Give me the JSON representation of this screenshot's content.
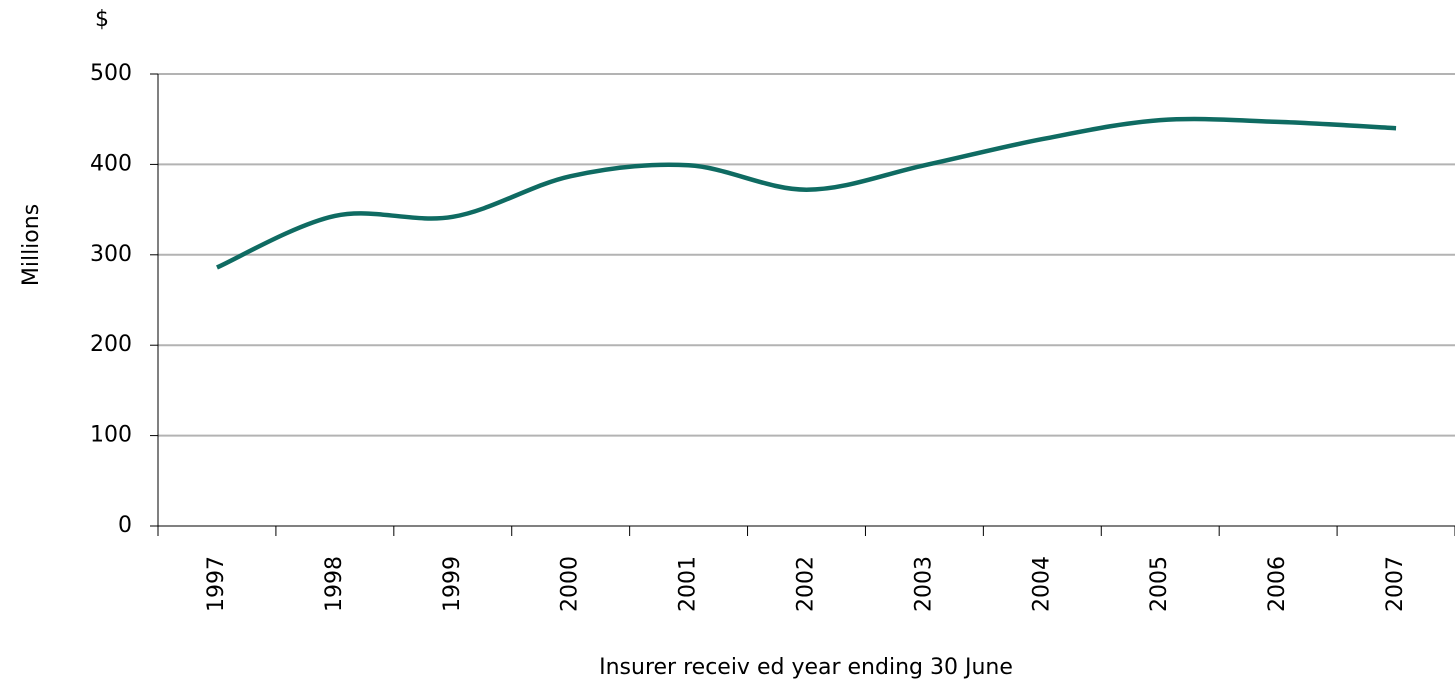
{
  "chart_data": {
    "type": "line",
    "y_unit": "$",
    "ylabel": "Millions",
    "xlabel": "Insurer receiv ed year ending 30 June",
    "categories": [
      "1997",
      "1998",
      "1999",
      "2000",
      "2001",
      "2002",
      "2003",
      "2004",
      "2005",
      "2006",
      "2007"
    ],
    "series": [
      {
        "color": "#0f6b62",
        "values": [
          286,
          343,
          342,
          387,
          399,
          372,
          399,
          428,
          449,
          447,
          440
        ]
      }
    ],
    "ylim": [
      0,
      500
    ],
    "yticks": [
      0,
      100,
      200,
      300,
      400,
      500
    ],
    "grid": true
  }
}
